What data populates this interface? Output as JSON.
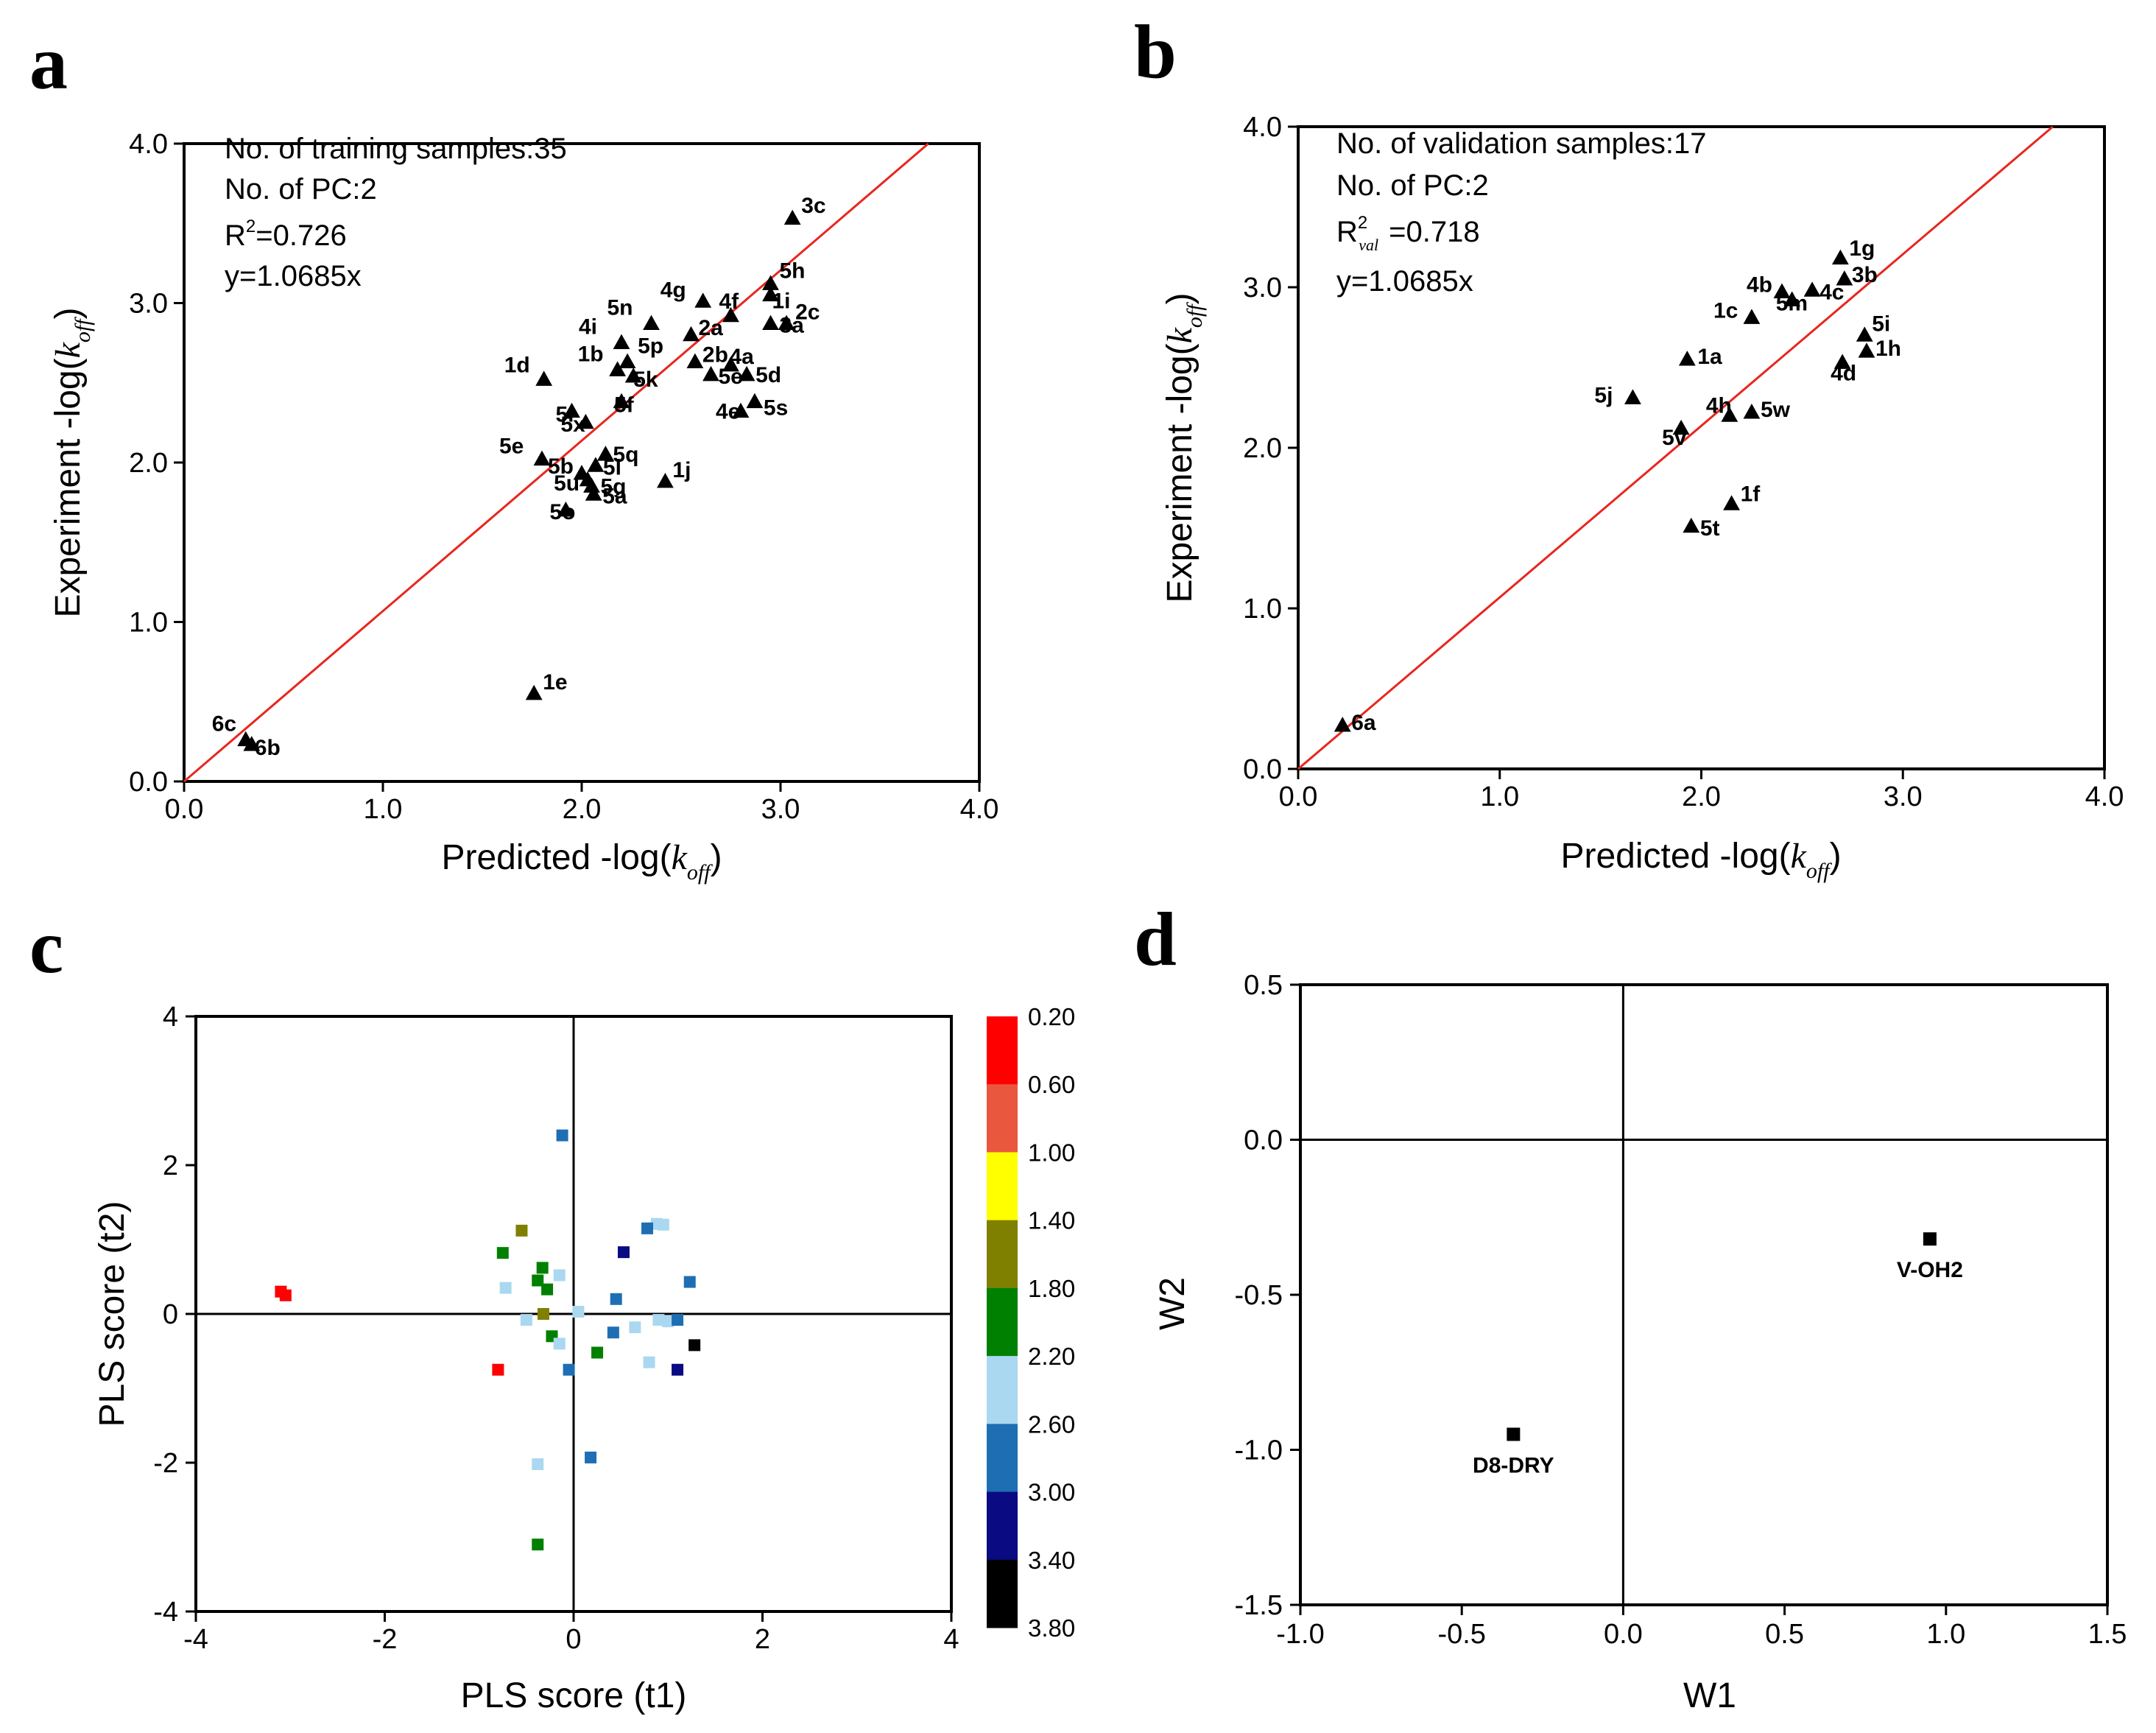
{
  "panels": {
    "a": {
      "letter": "a"
    },
    "b": {
      "letter": "b"
    },
    "c": {
      "letter": "c"
    },
    "d": {
      "letter": "d"
    }
  },
  "chart_data": [
    {
      "id": "a",
      "type": "scatter",
      "xlabel_main": "Predicted -log(",
      "ylabel_main": "Experiment -log(",
      "label_k": "k",
      "label_sub": "off",
      "label_close": ")",
      "xlim": [
        0,
        4
      ],
      "ylim": [
        0,
        4
      ],
      "xticks": [
        "0.0",
        "1.0",
        "2.0",
        "3.0",
        "4.0"
      ],
      "yticks": [
        "0.0",
        "1.0",
        "2.0",
        "3.0",
        "4.0"
      ],
      "annotations": [
        "No. of training samples:35",
        "No. of PC:2",
        "R",
        "2",
        "=0.726",
        "y=1.0685x"
      ],
      "fit_line": {
        "slope": 1.0685,
        "color": "#e8261e"
      },
      "points": [
        {
          "label": "3c",
          "x": 3.06,
          "y": 3.53
        },
        {
          "label": "5h",
          "x": 2.95,
          "y": 3.12
        },
        {
          "label": "1i",
          "x": 2.95,
          "y": 3.05
        },
        {
          "label": "2c",
          "x": 3.03,
          "y": 2.87
        },
        {
          "label": "4g",
          "x": 2.61,
          "y": 3.01
        },
        {
          "label": "4f",
          "x": 2.75,
          "y": 2.92
        },
        {
          "label": "5n",
          "x": 2.35,
          "y": 2.87
        },
        {
          "label": "2a",
          "x": 2.55,
          "y": 2.8
        },
        {
          "label": "4i",
          "x": 2.2,
          "y": 2.75
        },
        {
          "label": "2b",
          "x": 2.57,
          "y": 2.63
        },
        {
          "label": "4a",
          "x": 2.75,
          "y": 2.61
        },
        {
          "label": "3a",
          "x": 2.95,
          "y": 2.87
        },
        {
          "label": "5p",
          "x": 2.23,
          "y": 2.63
        },
        {
          "label": "1b",
          "x": 2.18,
          "y": 2.58
        },
        {
          "label": "5e",
          "x": 2.65,
          "y": 2.55
        },
        {
          "label": "5k",
          "x": 2.26,
          "y": 2.54
        },
        {
          "label": "5d",
          "x": 2.83,
          "y": 2.55
        },
        {
          "label": "5s",
          "x": 2.87,
          "y": 2.38
        },
        {
          "label": "4e",
          "x": 2.8,
          "y": 2.32
        },
        {
          "label": "1d",
          "x": 1.81,
          "y": 2.52
        },
        {
          "label": "5r",
          "x": 1.95,
          "y": 2.32
        },
        {
          "label": "5f",
          "x": 2.2,
          "y": 2.38
        },
        {
          "label": "5x",
          "x": 2.02,
          "y": 2.25
        },
        {
          "label": "5q",
          "x": 2.12,
          "y": 2.05
        },
        {
          "label": "5l",
          "x": 2.07,
          "y": 1.98
        },
        {
          "label": "5e",
          "x": 1.8,
          "y": 2.02
        },
        {
          "label": "5b",
          "x": 2.0,
          "y": 1.93
        },
        {
          "label": "5u",
          "x": 2.03,
          "y": 1.89
        },
        {
          "label": "5g",
          "x": 2.05,
          "y": 1.85
        },
        {
          "label": "5a",
          "x": 2.06,
          "y": 1.8
        },
        {
          "label": "1j",
          "x": 2.42,
          "y": 1.88
        },
        {
          "label": "5o",
          "x": 1.92,
          "y": 1.7
        },
        {
          "label": "1e",
          "x": 1.76,
          "y": 0.55
        },
        {
          "label": "6c",
          "x": 0.31,
          "y": 0.26
        },
        {
          "label": "6b",
          "x": 0.34,
          "y": 0.23
        }
      ]
    },
    {
      "id": "b",
      "type": "scatter",
      "xlabel_main": "Predicted -log(",
      "ylabel_main": "Experiment -log(",
      "label_k": "k",
      "label_sub": "off",
      "label_close": ")",
      "xlim": [
        0,
        4
      ],
      "ylim": [
        0,
        4
      ],
      "xticks": [
        "0.0",
        "1.0",
        "2.0",
        "3.0",
        "4.0"
      ],
      "yticks": [
        "0.0",
        "1.0",
        "2.0",
        "3.0",
        "4.0"
      ],
      "annotations": [
        "No. of validation samples:17",
        "No. of PC:2",
        "R",
        "2",
        "val",
        "=0.718",
        "y=1.0685x"
      ],
      "fit_line": {
        "slope": 1.0685,
        "color": "#e8261e"
      },
      "points": [
        {
          "label": "1g",
          "x": 2.69,
          "y": 3.18
        },
        {
          "label": "3b",
          "x": 2.71,
          "y": 3.05
        },
        {
          "label": "4b",
          "x": 2.4,
          "y": 2.97
        },
        {
          "label": "4c",
          "x": 2.55,
          "y": 2.98
        },
        {
          "label": "5m",
          "x": 2.45,
          "y": 2.92
        },
        {
          "label": "1c",
          "x": 2.25,
          "y": 2.81
        },
        {
          "label": "5i",
          "x": 2.81,
          "y": 2.7
        },
        {
          "label": "1h",
          "x": 2.82,
          "y": 2.6
        },
        {
          "label": "4d",
          "x": 2.7,
          "y": 2.53
        },
        {
          "label": "1a",
          "x": 1.93,
          "y": 2.55
        },
        {
          "label": "5j",
          "x": 1.66,
          "y": 2.31
        },
        {
          "label": "4h",
          "x": 2.14,
          "y": 2.2
        },
        {
          "label": "5w",
          "x": 2.25,
          "y": 2.22
        },
        {
          "label": "5v",
          "x": 1.9,
          "y": 2.12
        },
        {
          "label": "1f",
          "x": 2.15,
          "y": 1.65
        },
        {
          "label": "5t",
          "x": 1.95,
          "y": 1.51
        },
        {
          "label": "6a",
          "x": 0.22,
          "y": 0.27
        }
      ]
    },
    {
      "id": "c",
      "type": "scatter",
      "xlabel": "PLS score (t1)",
      "ylabel": "PLS score (t2)",
      "xlim": [
        -4,
        4
      ],
      "ylim": [
        -4,
        4
      ],
      "xticks": [
        "-4",
        "-2",
        "0",
        "2",
        "4"
      ],
      "yticks": [
        "-4",
        "-2",
        "0",
        "2",
        "4"
      ],
      "colorbar": {
        "ticks": [
          "0.20",
          "0.60",
          "1.00",
          "1.40",
          "1.80",
          "2.20",
          "2.60",
          "3.00",
          "3.40",
          "3.80"
        ],
        "colors": [
          "#ff0000",
          "#ea573f",
          "#ffff00",
          "#808000",
          "#008000",
          "#aad8f0",
          "#1e6eb4",
          "#0a0a82",
          "#000000"
        ]
      },
      "points": [
        {
          "x": -3.1,
          "y": 0.3,
          "c": 0
        },
        {
          "x": -3.05,
          "y": 0.25,
          "c": 0
        },
        {
          "x": -0.8,
          "y": -0.75,
          "c": 0
        },
        {
          "x": -0.55,
          "y": 1.12,
          "c": 3
        },
        {
          "x": -0.32,
          "y": 0.0,
          "c": 3
        },
        {
          "x": -0.75,
          "y": 0.82,
          "c": 4
        },
        {
          "x": -0.33,
          "y": 0.62,
          "c": 4
        },
        {
          "x": -0.38,
          "y": 0.45,
          "c": 4
        },
        {
          "x": -0.28,
          "y": 0.33,
          "c": 4
        },
        {
          "x": -0.23,
          "y": -0.3,
          "c": 4
        },
        {
          "x": 0.25,
          "y": -0.52,
          "c": 4
        },
        {
          "x": -0.38,
          "y": -3.1,
          "c": 4
        },
        {
          "x": -0.72,
          "y": 0.35,
          "c": 5
        },
        {
          "x": -0.5,
          "y": -0.08,
          "c": 5
        },
        {
          "x": -0.15,
          "y": 0.52,
          "c": 5
        },
        {
          "x": 0.05,
          "y": 0.03,
          "c": 5
        },
        {
          "x": -0.15,
          "y": -0.4,
          "c": 5
        },
        {
          "x": -0.38,
          "y": -2.02,
          "c": 5
        },
        {
          "x": 0.65,
          "y": -0.18,
          "c": 5
        },
        {
          "x": 0.8,
          "y": -0.65,
          "c": 5
        },
        {
          "x": 0.88,
          "y": 1.21,
          "c": 5
        },
        {
          "x": 0.95,
          "y": 1.2,
          "c": 5
        },
        {
          "x": 0.9,
          "y": -0.08,
          "c": 5
        },
        {
          "x": 1.0,
          "y": -0.1,
          "c": 5
        },
        {
          "x": -0.12,
          "y": 2.4,
          "c": 6
        },
        {
          "x": 0.45,
          "y": 0.2,
          "c": 6
        },
        {
          "x": 0.42,
          "y": -0.25,
          "c": 6
        },
        {
          "x": -0.05,
          "y": -0.75,
          "c": 6
        },
        {
          "x": 0.18,
          "y": -1.93,
          "c": 6
        },
        {
          "x": 0.78,
          "y": 1.15,
          "c": 6
        },
        {
          "x": 1.1,
          "y": -0.08,
          "c": 6
        },
        {
          "x": 1.23,
          "y": 0.43,
          "c": 6
        },
        {
          "x": 0.53,
          "y": 0.83,
          "c": 7
        },
        {
          "x": 1.1,
          "y": -0.75,
          "c": 7
        },
        {
          "x": 1.28,
          "y": -0.42,
          "c": 8
        }
      ]
    },
    {
      "id": "d",
      "type": "scatter",
      "xlabel": "W1",
      "ylabel": "W2",
      "xlim": [
        -1.0,
        1.5
      ],
      "ylim": [
        -1.5,
        0.5
      ],
      "xticks": [
        "-1.0",
        "-0.5",
        "0.0",
        "0.5",
        "1.0",
        "1.5"
      ],
      "yticks": [
        "-1.5",
        "-1.0",
        "-0.5",
        "0.0",
        "0.5"
      ],
      "points": [
        {
          "label": "V-OH2",
          "x": 0.95,
          "y": -0.32
        },
        {
          "label": "D8-DRY",
          "x": -0.34,
          "y": -0.95
        }
      ]
    }
  ]
}
